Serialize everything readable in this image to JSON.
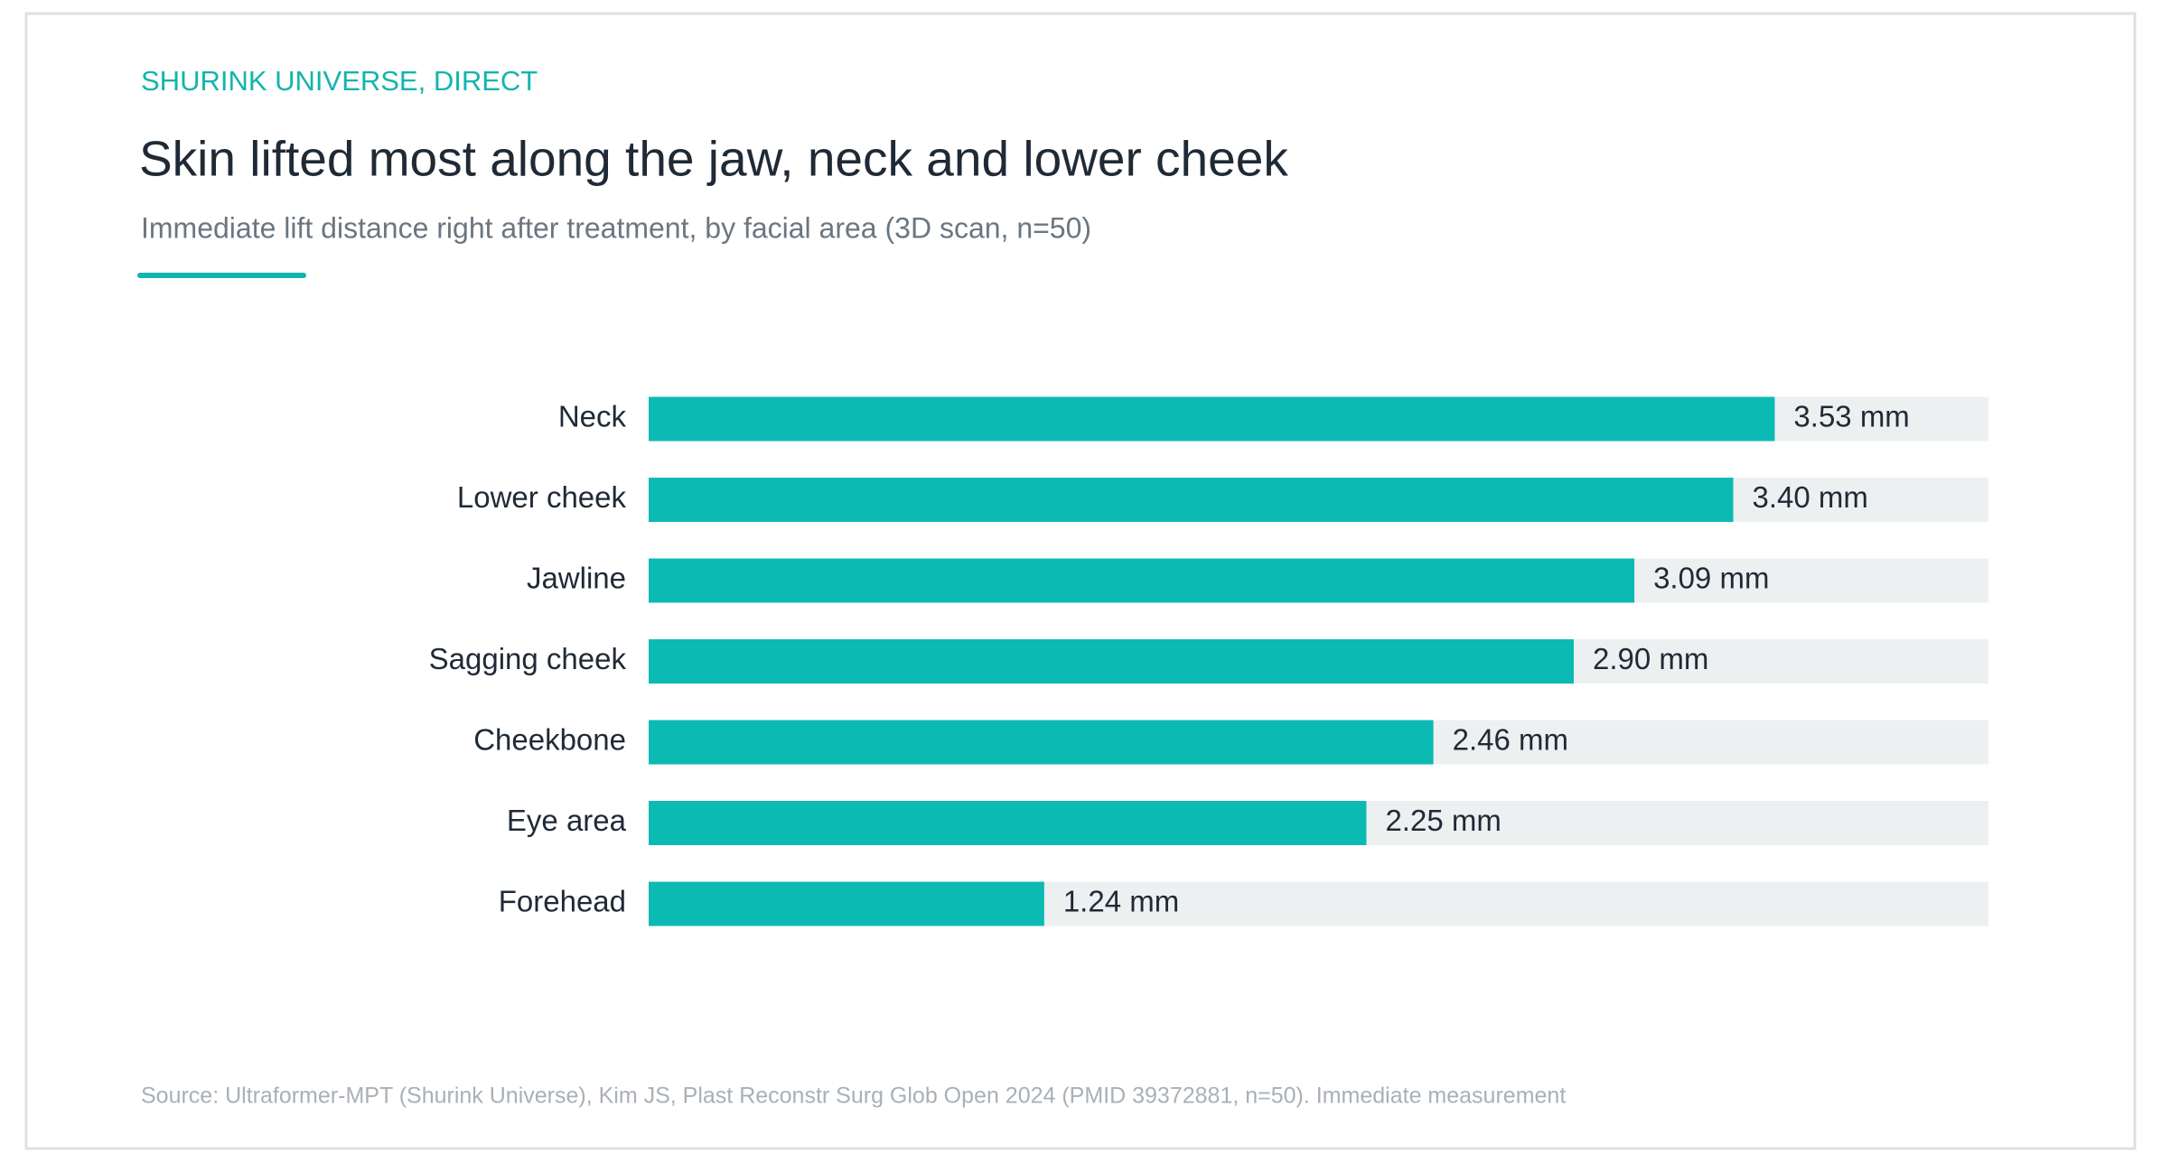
{
  "chart_data": {
    "type": "bar",
    "orientation": "horizontal",
    "kicker": "SHURINK UNIVERSE, DIRECT",
    "title": "Skin lifted most along the jaw, neck and lower cheek",
    "subtitle": "Immediate lift distance right after treatment, by facial area (3D scan, n=50)",
    "categories": [
      "Neck",
      "Lower cheek",
      "Jawline",
      "Sagging cheek",
      "Cheekbone",
      "Eye area",
      "Forehead"
    ],
    "values": [
      3.53,
      3.4,
      3.09,
      2.9,
      2.46,
      2.25,
      1.24
    ],
    "value_labels": [
      "3.53 mm",
      "3.40 mm",
      "3.09 mm",
      "2.90 mm",
      "2.46 mm",
      "2.25 mm",
      "1.24 mm"
    ],
    "color": "#0bbab3",
    "xlim": [
      0,
      4.2
    ],
    "source": "Source: Ultraformer-MPT (Shurink Universe), Kim JS, Plast Reconstr Surg Glob Open 2024 (PMID 39372881, n=50). Immediate measurement"
  }
}
